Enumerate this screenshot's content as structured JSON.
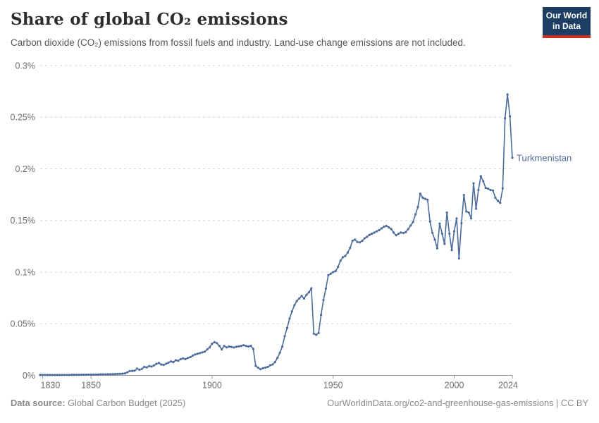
{
  "header": {
    "title": "Share of global CO₂ emissions",
    "subtitle": "Carbon dioxide (CO₂) emissions from fossil fuels and industry. Land-use change emissions are not included.",
    "logo": {
      "line1": "Our World",
      "line2": "in Data"
    }
  },
  "footer": {
    "source_label": "Data source:",
    "source_value": " Global Carbon Budget (2025)",
    "credit": "OurWorldinData.org/co2-and-greenhouse-gas-emissions | CC BY"
  },
  "colors": {
    "series": "#4c6a9c",
    "grid": "#d6d6d6",
    "axis": "#9c9c9c",
    "tick_label": "#6e6e6e",
    "logo_bg": "#1d3d63",
    "logo_red": "#cb2d27"
  },
  "chart_data": {
    "type": "line",
    "title": "Share of global CO₂ emissions",
    "xlabel": "",
    "ylabel": "",
    "unit": "%",
    "grid": "dashed-horizontal",
    "legend_position": "end-of-line-label",
    "xlim": [
      1829,
      2024
    ],
    "ylim": [
      0,
      0.3
    ],
    "x_ticks": [
      {
        "year": 1830,
        "label": "1830",
        "dx": 11
      },
      {
        "year": 1850,
        "label": "1850",
        "dx": 0
      },
      {
        "year": 1900,
        "label": "1900",
        "dx": 0
      },
      {
        "year": 1950,
        "label": "1950",
        "dx": 0
      },
      {
        "year": 2000,
        "label": "2000",
        "dx": 0
      },
      {
        "year": 2024,
        "label": "2024",
        "dx": -6
      }
    ],
    "y_ticks": [
      {
        "value": 0,
        "label": "0%"
      },
      {
        "value": 0.05,
        "label": "0.05%"
      },
      {
        "value": 0.1,
        "label": "0.1%"
      },
      {
        "value": 0.15,
        "label": "0.15%"
      },
      {
        "value": 0.2,
        "label": "0.2%"
      },
      {
        "value": 0.25,
        "label": "0.25%"
      },
      {
        "value": 0.3,
        "label": "0.3%"
      }
    ],
    "series": [
      {
        "name": "Turkmenistan",
        "color": "#4c6a9c",
        "x_start": 1829,
        "x_end": 2024,
        "values": [
          0.0004,
          0.0005,
          0.0005,
          0.0004,
          0.0004,
          0.0004,
          0.0004,
          0.0004,
          0.0005,
          0.0005,
          0.0005,
          0.0005,
          0.0005,
          0.0006,
          0.0006,
          0.0006,
          0.0006,
          0.0007,
          0.0007,
          0.0007,
          0.0008,
          0.0008,
          0.0008,
          0.0009,
          0.0009,
          0.001,
          0.001,
          0.001,
          0.0011,
          0.0011,
          0.0012,
          0.0013,
          0.0014,
          0.0015,
          0.0017,
          0.002,
          0.003,
          0.0042,
          0.0044,
          0.0046,
          0.0066,
          0.0055,
          0.0062,
          0.0082,
          0.0078,
          0.009,
          0.0086,
          0.0097,
          0.0112,
          0.012,
          0.0106,
          0.0102,
          0.0113,
          0.0124,
          0.0135,
          0.0129,
          0.0147,
          0.0142,
          0.0157,
          0.0165,
          0.0158,
          0.0169,
          0.0176,
          0.0192,
          0.0203,
          0.021,
          0.0216,
          0.0223,
          0.023,
          0.0252,
          0.0272,
          0.0307,
          0.0322,
          0.0312,
          0.0285,
          0.0252,
          0.0285,
          0.0271,
          0.028,
          0.0276,
          0.0271,
          0.0277,
          0.0281,
          0.0285,
          0.0292,
          0.0285,
          0.028,
          0.0286,
          0.0257,
          0.0093,
          0.0075,
          0.006,
          0.007,
          0.0076,
          0.0082,
          0.0098,
          0.0106,
          0.013,
          0.017,
          0.022,
          0.028,
          0.038,
          0.046,
          0.055,
          0.062,
          0.068,
          0.072,
          0.0745,
          0.077,
          0.0745,
          0.078,
          0.0805,
          0.0843,
          0.0404,
          0.0393,
          0.0411,
          0.0586,
          0.073,
          0.084,
          0.097,
          0.0985,
          0.1,
          0.101,
          0.105,
          0.111,
          0.1144,
          0.1156,
          0.119,
          0.1235,
          0.1303,
          0.1315,
          0.1292,
          0.1288,
          0.1303,
          0.1327,
          0.1342,
          0.1361,
          0.1372,
          0.1383,
          0.1395,
          0.1406,
          0.1424,
          0.144,
          0.1447,
          0.1433,
          0.1417,
          0.1383,
          0.1356,
          0.1372,
          0.1383,
          0.1379,
          0.1388,
          0.1417,
          0.1451,
          0.1485,
          0.156,
          0.163,
          0.176,
          0.172,
          0.171,
          0.17,
          0.149,
          0.138,
          0.1315,
          0.123,
          0.147,
          0.1372,
          0.1274,
          0.1577,
          0.1372,
          0.1213,
          0.1395,
          0.152,
          0.1133,
          0.1474,
          0.1747,
          0.1588,
          0.1577,
          0.152,
          0.186,
          0.1614,
          0.1795,
          0.1929,
          0.188,
          0.1815,
          0.1808,
          0.1795,
          0.179,
          0.172,
          0.169,
          0.167,
          0.181,
          0.249,
          0.272,
          0.251,
          0.2107
        ]
      }
    ]
  }
}
